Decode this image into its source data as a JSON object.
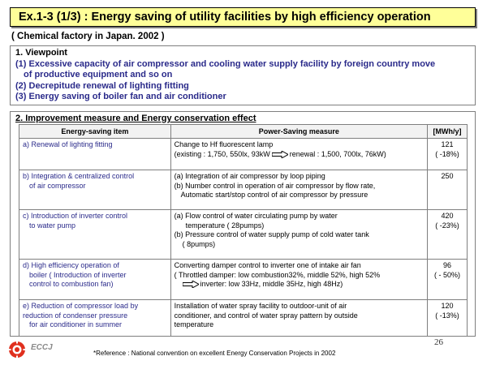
{
  "title": "Ex.1-3 (1/3) : Energy saving of utility facilities by high efficiency operation",
  "subtitle": "( Chemical factory in Japan. 2002 )",
  "viewpoint": {
    "heading": "1. Viewpoint",
    "lines": [
      "(1) Excessive capacity of air compressor and cooling water supply facility by foreign country move",
      "of productive equipment and so on",
      "(2) Decrepitude renewal of lighting fitting",
      "(3) Energy saving of boiler fan and air conditioner"
    ]
  },
  "improvement": {
    "heading": "2. Improvement measure and Energy conservation effect",
    "columns": [
      "Energy-saving item",
      "Power-Saving measure",
      "[MWh/y]"
    ],
    "rows": [
      {
        "item": [
          "a) Renewal of lighting fitting"
        ],
        "measure": [
          "Change to Hf fluorescent lamp",
          "(existing : 1,750, 550lx, 93kW",
          "renewal : 1,500, 700lx, 76kW)"
        ],
        "value": [
          "121",
          "( -18%)"
        ]
      },
      {
        "item": [
          "b) Integration & centralized control",
          "of air compressor"
        ],
        "measure": [
          "(a) Integration of air compressor by loop piping",
          "(b) Number control in operation of air compressor by flow rate,",
          "Automatic start/stop control of  air compressor by pressure"
        ],
        "value": [
          "250"
        ]
      },
      {
        "item": [
          "c) Introduction of inverter control",
          "to water pump"
        ],
        "measure": [
          "(a) Flow control of water circulating pump by water",
          "temperature ( 28pumps)",
          "(b) Pressure control of water supply pump of cold water tank",
          "( 8pumps)"
        ],
        "value": [
          "420",
          "( -23%)"
        ]
      },
      {
        "item": [
          "d) High efficiency operation of",
          "boiler ( Introduction of inverter",
          "control to combustion fan)"
        ],
        "measure": [
          "Converting damper control to inverter one of intake air fan",
          "( Throttled damper: low combustion32%, middle 52%, high 52%",
          "inverter: low 33Hz, middle 35Hz, high 48Hz)"
        ],
        "value": [
          "96",
          "( - 50%)"
        ]
      },
      {
        "item": [
          "e) Reduction of compressor load by",
          "reduction of condenser pressure",
          "for air conditioner in summer"
        ],
        "measure": [
          "Installation of water spray facility to outdoor-unit of air",
          "conditioner, and control of water spray pattern  by outside",
          "temperature"
        ],
        "value": [
          "120",
          "( -13%)"
        ]
      }
    ]
  },
  "footer": {
    "logo_text": "ECCJ",
    "note": "*Reference : National convention on excellent Energy Conservation Projects in 2002",
    "page": "26"
  },
  "colors": {
    "title_bg": "#ffff99",
    "item_text": "#2a2a8a",
    "logo_red": "#e0301e"
  },
  "icons": [
    "right-arrow-icon",
    "eccj-logo-icon"
  ]
}
